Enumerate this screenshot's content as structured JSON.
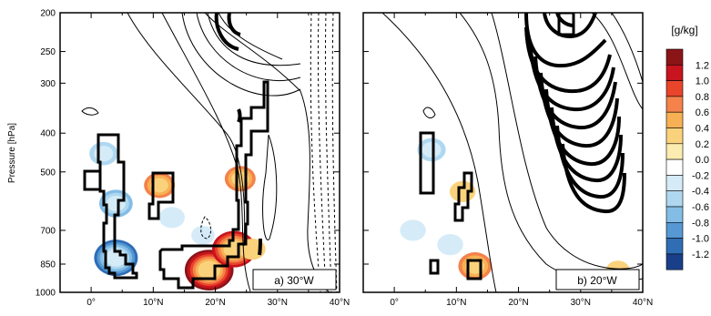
{
  "figure": {
    "ylabel": "Pressure [hPa]",
    "colorbar_unit": "[g/kg]"
  },
  "colorbar": {
    "labels": [
      "1.2",
      "1.0",
      "0.8",
      "0.6",
      "0.4",
      "0.2",
      "0.0",
      "-0.2",
      "-0.4",
      "-0.6",
      "-0.8",
      "-1.0",
      "-1.2"
    ],
    "colors": [
      "#8b1417",
      "#c8141e",
      "#e8452a",
      "#f4824a",
      "#f8b054",
      "#fbd27c",
      "#fcecb0",
      "#ffffff",
      "#d5ecf8",
      "#afd8f0",
      "#83bde6",
      "#5598d4",
      "#2f6db5",
      "#1a3f8a"
    ]
  },
  "chart_data": [
    {
      "type": "heatmap",
      "title": "a) 30°W",
      "ylabel": "Pressure [hPa]",
      "x_ticks": [
        "0°",
        "10°N",
        "20°N",
        "30°N",
        "40°N"
      ],
      "x_tick_values": [
        0,
        10,
        20,
        30,
        40
      ],
      "xlim": [
        -5,
        40
      ],
      "y_ticks": [
        "200",
        "250",
        "300",
        "400",
        "500",
        "700",
        "850",
        "1000"
      ],
      "y_tick_values": [
        200,
        250,
        300,
        400,
        500,
        700,
        850,
        1000
      ],
      "ylim": [
        1000,
        200
      ],
      "y_scale": "log",
      "shading_blobs": [
        {
          "lat": 4,
          "p": 820,
          "value": -1.0
        },
        {
          "lat": 4,
          "p": 600,
          "value": -0.6
        },
        {
          "lat": 2,
          "p": 450,
          "value": -0.4
        },
        {
          "lat": 11,
          "p": 540,
          "value": 0.5
        },
        {
          "lat": 19,
          "p": 880,
          "value": 1.2
        },
        {
          "lat": 23,
          "p": 780,
          "value": 1.0
        },
        {
          "lat": 24,
          "p": 520,
          "value": 0.5
        },
        {
          "lat": 26,
          "p": 780,
          "value": 0.3
        },
        {
          "lat": 13,
          "p": 650,
          "value": -0.3
        },
        {
          "lat": 18,
          "p": 720,
          "value": -0.2
        }
      ]
    },
    {
      "type": "heatmap",
      "title": "b) 20°W",
      "ylabel": "",
      "x_ticks": [
        "0°",
        "10°N",
        "20°N",
        "30°N",
        "40°N"
      ],
      "x_tick_values": [
        0,
        10,
        20,
        30,
        40
      ],
      "xlim": [
        -5,
        40
      ],
      "y_ticks": [],
      "ylim": [
        1000,
        200
      ],
      "y_scale": "log",
      "shading_blobs": [
        {
          "lat": 6,
          "p": 440,
          "value": -0.4
        },
        {
          "lat": 3,
          "p": 700,
          "value": -0.3
        },
        {
          "lat": 11,
          "p": 560,
          "value": 0.3
        },
        {
          "lat": 13,
          "p": 860,
          "value": 0.6
        },
        {
          "lat": 9,
          "p": 760,
          "value": -0.3
        },
        {
          "lat": 36,
          "p": 880,
          "value": 0.2
        },
        {
          "lat": 31,
          "p": 930,
          "value": -0.2
        }
      ]
    }
  ]
}
